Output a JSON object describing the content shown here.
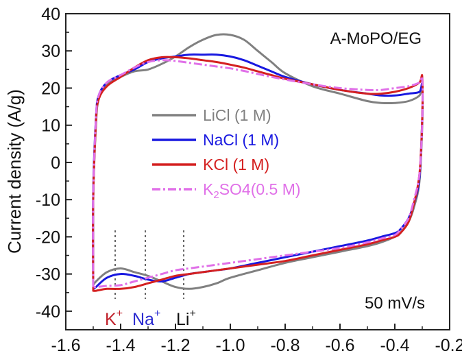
{
  "chart_data": {
    "type": "line",
    "title": "",
    "xlabel": "",
    "ylabel": "Current density (A/g)",
    "xlim": [
      -1.6,
      -0.2
    ],
    "ylim": [
      -45,
      40
    ],
    "xticks": [
      -1.6,
      -1.4,
      -1.2,
      -1.0,
      -0.8,
      -0.6,
      -0.4,
      -0.2
    ],
    "xtick_labels": [
      "-1.6",
      "-1.4",
      "-1.2",
      "-1.0",
      "-0.8",
      "-0.6",
      "-0.4",
      "-0.2"
    ],
    "yticks": [
      -40,
      -30,
      -20,
      -10,
      0,
      10,
      20,
      30,
      40
    ],
    "ytick_labels": [
      "-40",
      "-30",
      "-20",
      "-10",
      "0",
      "10",
      "20",
      "30",
      "40"
    ],
    "annotations": {
      "sample": "A-MoPO/EG",
      "scan_rate": "50 mV/s"
    },
    "ion_markers": [
      {
        "x": -1.42,
        "label": "K",
        "sup": "+",
        "color": "#c0202a"
      },
      {
        "x": -1.31,
        "label": "Na",
        "sup": "+",
        "color": "#2a2ad0"
      },
      {
        "x": -1.17,
        "label": "Li",
        "sup": "+",
        "color": "#111111"
      }
    ],
    "legend_position": "center-left",
    "series": [
      {
        "name": "LiCl (1 M)",
        "legend": {
          "main": "LiCl (1 M)",
          "sub": "",
          "tail": ""
        },
        "color": "#808080",
        "dash": "solid",
        "x": [
          -1.5,
          -1.5,
          -1.49,
          -1.48,
          -1.45,
          -1.4,
          -1.35,
          -1.3,
          -1.25,
          -1.2,
          -1.15,
          -1.1,
          -1.05,
          -1.0,
          -0.95,
          -0.9,
          -0.85,
          -0.8,
          -0.7,
          -0.6,
          -0.5,
          -0.45,
          -0.4,
          -0.35,
          -0.31,
          -0.3,
          -0.3,
          -0.31,
          -0.33,
          -0.35,
          -0.38,
          -0.4,
          -0.45,
          -0.5,
          -0.6,
          -0.7,
          -0.8,
          -0.9,
          -1.0,
          -1.05,
          -1.1,
          -1.15,
          -1.2,
          -1.25,
          -1.3,
          -1.35,
          -1.4,
          -1.45,
          -1.49,
          -1.5
        ],
        "y": [
          -33,
          -10,
          10,
          17,
          21,
          23,
          24.5,
          25,
          26.5,
          28.5,
          31,
          33,
          34.3,
          34.3,
          33,
          30,
          27,
          24,
          20.5,
          18.5,
          16.5,
          16,
          16,
          16.5,
          18,
          20,
          10,
          -5,
          -12,
          -16,
          -19,
          -20,
          -21.5,
          -22.5,
          -24,
          -25.5,
          -27,
          -29,
          -31,
          -32.5,
          -33.5,
          -34,
          -33.5,
          -32,
          -30.5,
          -29.5,
          -28.5,
          -29.5,
          -32,
          -33
        ]
      },
      {
        "name": "NaCl (1 M)",
        "legend": {
          "main": "NaCl (1 M)",
          "sub": "",
          "tail": ""
        },
        "color": "#1818e0",
        "dash": "solid",
        "x": [
          -1.5,
          -1.5,
          -1.49,
          -1.48,
          -1.45,
          -1.4,
          -1.35,
          -1.3,
          -1.25,
          -1.2,
          -1.15,
          -1.1,
          -1.05,
          -1.0,
          -0.95,
          -0.9,
          -0.85,
          -0.8,
          -0.7,
          -0.6,
          -0.5,
          -0.45,
          -0.4,
          -0.35,
          -0.31,
          -0.3,
          -0.3,
          -0.31,
          -0.33,
          -0.35,
          -0.38,
          -0.4,
          -0.45,
          -0.5,
          -0.6,
          -0.7,
          -0.8,
          -0.9,
          -1.0,
          -1.05,
          -1.1,
          -1.15,
          -1.2,
          -1.25,
          -1.3,
          -1.35,
          -1.4,
          -1.45,
          -1.49,
          -1.5
        ],
        "y": [
          -34,
          -8,
          12,
          18,
          21.5,
          23.5,
          25,
          27,
          28,
          28.5,
          29,
          29,
          29,
          28.5,
          27.5,
          26,
          24.5,
          23,
          21,
          19.5,
          18.5,
          18,
          18,
          18.5,
          19,
          21,
          12,
          -4,
          -11,
          -15,
          -18,
          -19,
          -20,
          -21,
          -22.5,
          -24,
          -25.5,
          -27,
          -28.5,
          -29,
          -29.5,
          -30,
          -31,
          -32,
          -31.5,
          -30.5,
          -30,
          -31,
          -33.5,
          -34
        ]
      },
      {
        "name": "KCl (1 M)",
        "legend": {
          "main": "KCl (1 M)",
          "sub": "",
          "tail": ""
        },
        "color": "#d42020",
        "dash": "solid",
        "x": [
          -1.5,
          -1.5,
          -1.49,
          -1.48,
          -1.45,
          -1.4,
          -1.35,
          -1.3,
          -1.25,
          -1.2,
          -1.15,
          -1.1,
          -1.05,
          -1.0,
          -0.95,
          -0.9,
          -0.85,
          -0.8,
          -0.7,
          -0.6,
          -0.5,
          -0.45,
          -0.4,
          -0.35,
          -0.31,
          -0.3,
          -0.3,
          -0.31,
          -0.33,
          -0.35,
          -0.38,
          -0.4,
          -0.45,
          -0.5,
          -0.6,
          -0.7,
          -0.8,
          -0.9,
          -1.0,
          -1.05,
          -1.1,
          -1.15,
          -1.2,
          -1.25,
          -1.3,
          -1.35,
          -1.4,
          -1.45,
          -1.49,
          -1.5
        ],
        "y": [
          -34.5,
          -10,
          11,
          17,
          20.5,
          23,
          25.5,
          27.5,
          28.3,
          28.3,
          28,
          27.5,
          27,
          26.3,
          25.5,
          24.5,
          23.5,
          22.5,
          21,
          19.5,
          18.5,
          18.5,
          19,
          20,
          21.5,
          23,
          12,
          -3,
          -11,
          -16,
          -19,
          -20,
          -21,
          -22,
          -23.5,
          -25,
          -26.5,
          -27.5,
          -28.5,
          -29,
          -29.5,
          -30,
          -30.5,
          -31.5,
          -32.5,
          -33.5,
          -34,
          -34,
          -34.5,
          -34.5
        ]
      },
      {
        "name": "K2SO4 (0.5 M)",
        "legend": {
          "main": "K",
          "sub": "2",
          "tail": "SO4(0.5 M)"
        },
        "color": "#e070e8",
        "dash": "dashdot",
        "x": [
          -1.5,
          -1.5,
          -1.49,
          -1.48,
          -1.45,
          -1.4,
          -1.35,
          -1.3,
          -1.25,
          -1.2,
          -1.15,
          -1.1,
          -1.05,
          -1.0,
          -0.95,
          -0.9,
          -0.85,
          -0.8,
          -0.7,
          -0.6,
          -0.5,
          -0.45,
          -0.4,
          -0.35,
          -0.31,
          -0.3,
          -0.3,
          -0.31,
          -0.33,
          -0.35,
          -0.38,
          -0.4,
          -0.45,
          -0.5,
          -0.6,
          -0.7,
          -0.8,
          -0.9,
          -1.0,
          -1.05,
          -1.1,
          -1.15,
          -1.2,
          -1.25,
          -1.3,
          -1.35,
          -1.4,
          -1.45,
          -1.49,
          -1.5
        ],
        "y": [
          -33.5,
          -9,
          12,
          18,
          21.5,
          23.5,
          25.5,
          27,
          27.5,
          27.3,
          26.8,
          26.3,
          25.8,
          25.3,
          24.6,
          23.8,
          23,
          22.3,
          21,
          20,
          19.5,
          19.5,
          20,
          20.5,
          21.5,
          22.5,
          11,
          -3,
          -10,
          -15,
          -18,
          -19.5,
          -20.5,
          -21.5,
          -23,
          -24,
          -25,
          -26,
          -27,
          -27.5,
          -28,
          -28.5,
          -29,
          -30,
          -31,
          -32,
          -33,
          -33.2,
          -33.5,
          -33.5
        ]
      }
    ]
  }
}
